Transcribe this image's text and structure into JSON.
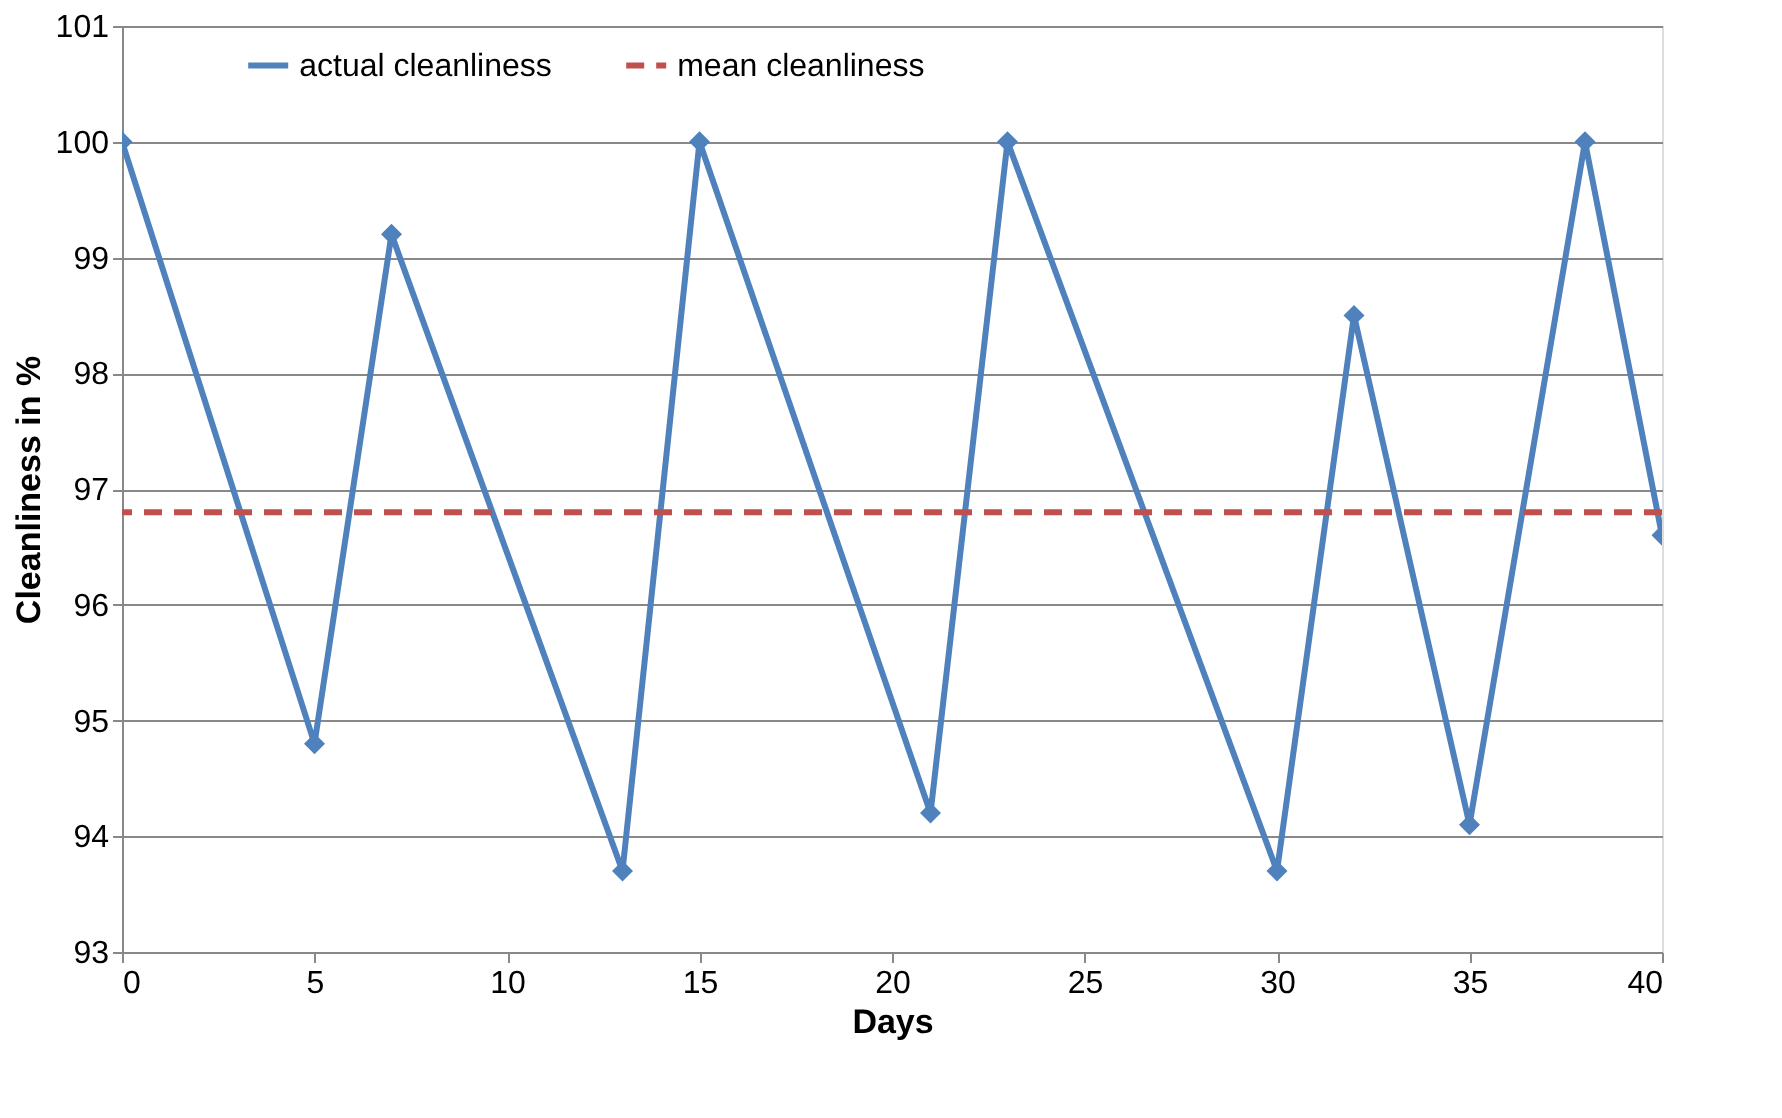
{
  "chart_data": {
    "type": "line",
    "xlabel": "Days",
    "ylabel": "Cleanliness in %",
    "x": [
      0,
      5,
      7,
      13,
      15,
      21,
      23,
      30,
      32,
      35,
      38,
      40
    ],
    "series": [
      {
        "name": "actual cleanliness",
        "color": "#4f81bd",
        "values": [
          100,
          94.8,
          99.2,
          93.7,
          100,
          94.2,
          100,
          93.7,
          98.5,
          94.1,
          100,
          96.6
        ]
      }
    ],
    "xlim": [
      0,
      40
    ],
    "xticks": [
      0,
      5,
      10,
      15,
      20,
      25,
      30,
      35,
      40
    ],
    "ylim": [
      93,
      101
    ],
    "yticks": [
      93,
      94,
      95,
      96,
      97,
      98,
      99,
      100,
      101
    ],
    "ref_lines": [
      {
        "axis": "y",
        "value": 96.8,
        "label": "mean cleanliness",
        "color": "#c0504d",
        "line_style": "dashed"
      }
    ],
    "grid": "y",
    "legend": "top",
    "marker": "diamond",
    "line_style": "solid"
  }
}
